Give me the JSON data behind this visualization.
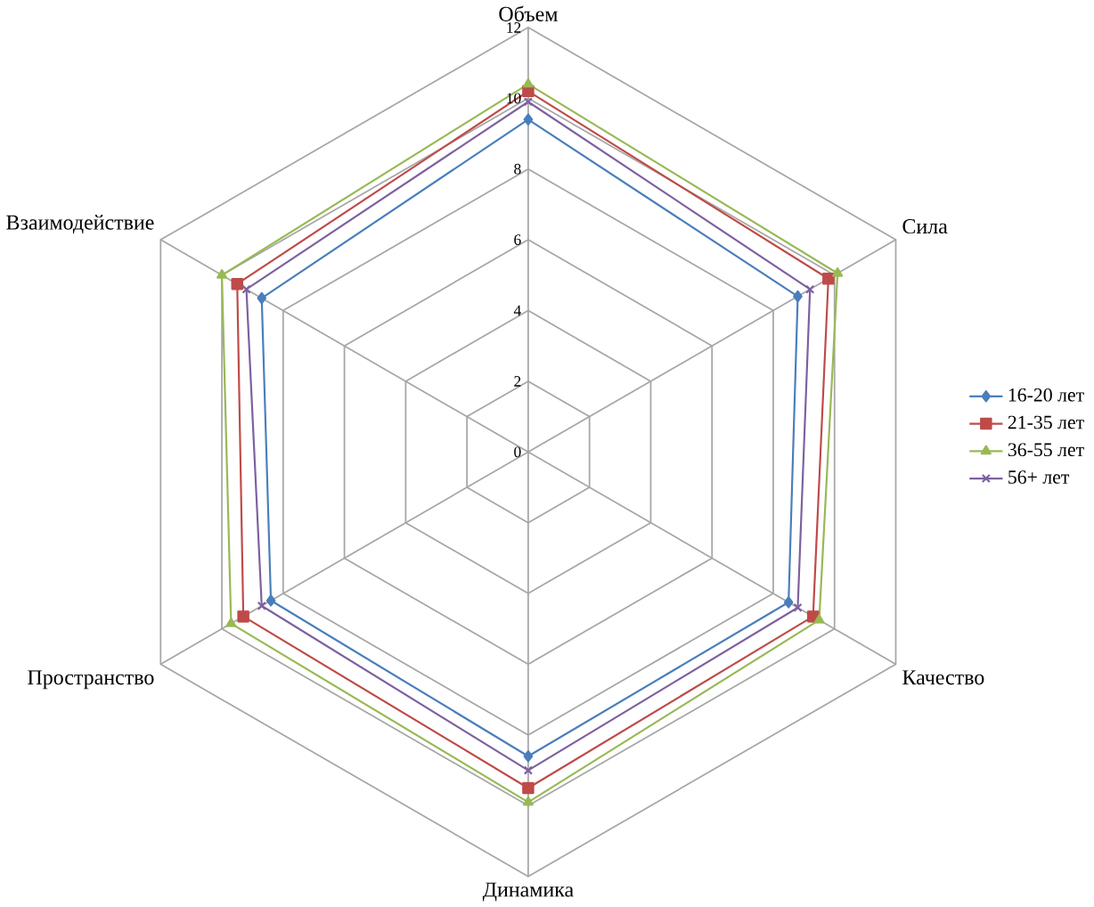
{
  "chart_data": {
    "type": "radar",
    "categories": [
      "Объем",
      "Сила",
      "Качество",
      "Динамика",
      "Пространство",
      "Взаимодействие"
    ],
    "ylim": [
      0,
      12
    ],
    "yticks": [
      0,
      2,
      4,
      6,
      8,
      10,
      12
    ],
    "grid": true,
    "legend": "right",
    "series": [
      {
        "name": "16-20 лет",
        "color": "#4a7ebb",
        "marker": "diamond",
        "values": [
          9.4,
          8.8,
          8.5,
          8.6,
          8.4,
          8.7
        ]
      },
      {
        "name": "21-35 лет",
        "color": "#be4b48",
        "marker": "square",
        "values": [
          10.2,
          9.8,
          9.3,
          9.5,
          9.3,
          9.5
        ]
      },
      {
        "name": "36-55 лет",
        "color": "#98b954",
        "marker": "triangle",
        "values": [
          10.4,
          10.1,
          9.5,
          9.9,
          9.7,
          10.0
        ]
      },
      {
        "name": "56+ лет",
        "color": "#7d60a0",
        "marker": "cross",
        "values": [
          9.9,
          9.2,
          8.8,
          9.0,
          8.7,
          9.2
        ]
      }
    ]
  }
}
